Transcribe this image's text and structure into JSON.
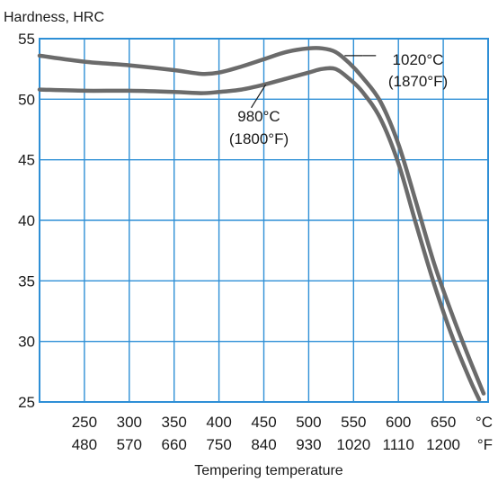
{
  "chart_data": {
    "type": "line",
    "ylabel": "Hardness, HRC",
    "xlabel": "Tempering temperature",
    "ylim": [
      25,
      55
    ],
    "yticks": [
      25,
      30,
      35,
      40,
      45,
      50,
      55
    ],
    "xlim": [
      200,
      700
    ],
    "x_ticks_c": [
      250,
      300,
      350,
      400,
      450,
      500,
      550,
      600,
      650
    ],
    "x_ticks_f": [
      480,
      570,
      660,
      750,
      840,
      930,
      1020,
      1110,
      1200
    ],
    "x_unit_c": "°C",
    "x_unit_f": "°F",
    "grid": true,
    "line_color": "#6b6b6b",
    "grid_color": "#2e8fd6",
    "series": [
      {
        "name": "1020°C (1870°F)",
        "label_line1": "1020°C",
        "label_line2": "(1870°F)",
        "x": [
          200,
          250,
          300,
          350,
          380,
          400,
          425,
          450,
          475,
          500,
          515,
          530,
          545,
          560,
          580,
          600,
          620,
          640,
          660,
          680,
          695
        ],
        "y": [
          53.6,
          53.1,
          52.8,
          52.4,
          52.1,
          52.2,
          52.7,
          53.3,
          53.9,
          54.2,
          54.2,
          53.9,
          53.0,
          51.8,
          49.8,
          46.3,
          41.4,
          36.4,
          32.2,
          28.4,
          25.7
        ]
      },
      {
        "name": "980°C (1800°F)",
        "label_line1": "980°C",
        "label_line2": "(1800°F)",
        "x": [
          200,
          250,
          300,
          350,
          380,
          400,
          425,
          450,
          475,
          500,
          515,
          530,
          545,
          560,
          580,
          600,
          620,
          640,
          660,
          680,
          690
        ],
        "y": [
          50.8,
          50.7,
          50.7,
          50.6,
          50.5,
          50.6,
          50.8,
          51.2,
          51.7,
          52.2,
          52.5,
          52.5,
          51.7,
          50.6,
          48.4,
          44.7,
          39.6,
          34.7,
          30.4,
          26.8,
          25.2
        ]
      }
    ]
  }
}
